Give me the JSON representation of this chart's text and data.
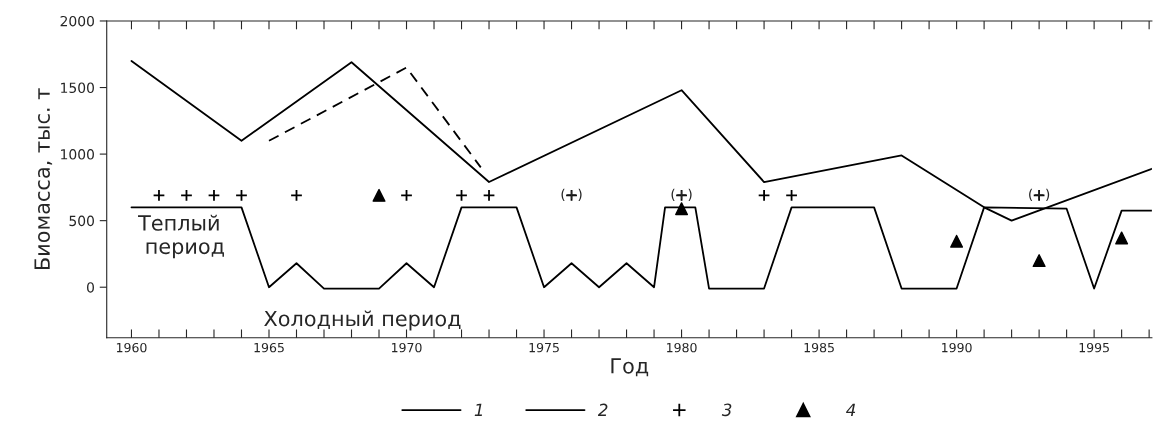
{
  "chart_data": {
    "type": "line",
    "xlabel": "Год",
    "ylabel": "Биомасса, тыс. т",
    "xlim": [
      1959.1,
      1997.1
    ],
    "ylim": [
      -380,
      2000
    ],
    "xticks": [
      {
        "value": 1960,
        "label": "1960"
      },
      {
        "value": 1961,
        "label": null
      },
      {
        "value": 1962,
        "label": null
      },
      {
        "value": 1963,
        "label": null
      },
      {
        "value": 1964,
        "label": null
      },
      {
        "value": 1965,
        "label": "1965"
      },
      {
        "value": 1966,
        "label": null
      },
      {
        "value": 1967,
        "label": null
      },
      {
        "value": 1968,
        "label": null
      },
      {
        "value": 1969,
        "label": null
      },
      {
        "value": 1970,
        "label": "1970"
      },
      {
        "value": 1971,
        "label": null
      },
      {
        "value": 1972,
        "label": null
      },
      {
        "value": 1973,
        "label": null
      },
      {
        "value": 1974,
        "label": null
      },
      {
        "value": 1975,
        "label": "1975"
      },
      {
        "value": 1976,
        "label": null
      },
      {
        "value": 1977,
        "label": null
      },
      {
        "value": 1978,
        "label": null
      },
      {
        "value": 1979,
        "label": null
      },
      {
        "value": 1980,
        "label": "1980"
      },
      {
        "value": 1981,
        "label": null
      },
      {
        "value": 1982,
        "label": null
      },
      {
        "value": 1983,
        "label": null
      },
      {
        "value": 1984,
        "label": null
      },
      {
        "value": 1985,
        "label": "1985"
      },
      {
        "value": 1986,
        "label": null
      },
      {
        "value": 1987,
        "label": null
      },
      {
        "value": 1988,
        "label": null
      },
      {
        "value": 1989,
        "label": null
      },
      {
        "value": 1990,
        "label": "1990"
      },
      {
        "value": 1991,
        "label": null
      },
      {
        "value": 1992,
        "label": null
      },
      {
        "value": 1993,
        "label": null
      },
      {
        "value": 1994,
        "label": null
      },
      {
        "value": 1995,
        "label": "1995"
      },
      {
        "value": 1996,
        "label": null
      },
      {
        "value": 1997,
        "label": null
      }
    ],
    "yticks": [
      0,
      500,
      1000,
      1500,
      2000
    ],
    "legend": "bottom",
    "grid": false,
    "series": [
      {
        "name": "1",
        "color": "#000000",
        "line_style": "solid",
        "x": [
          1960,
          1964,
          1968,
          1973,
          1980,
          1983,
          1988,
          1991,
          1992,
          1997.1
        ],
        "values": [
          1700,
          1100,
          1690,
          790,
          1480,
          790,
          990,
          600,
          500,
          890
        ]
      },
      {
        "color": "#000000",
        "line_style": "dashed",
        "x": [
          1965,
          1970,
          1972.7
        ],
        "values": [
          1100,
          1650,
          900
        ]
      },
      {
        "name": "2",
        "color": "#000000",
        "line_style": "solid",
        "x": [
          1960,
          1964,
          1965,
          1966,
          1967,
          1969,
          1970,
          1971,
          1972,
          1974,
          1975,
          1976,
          1977,
          1978,
          1979,
          1979.4,
          1980.5,
          1981,
          1983,
          1984,
          1987,
          1988,
          1990,
          1991,
          1994,
          1995,
          1996,
          1997.1
        ],
        "values": [
          600,
          600,
          0,
          180,
          -10,
          -10,
          180,
          0,
          600,
          600,
          0,
          180,
          0,
          180,
          0,
          600,
          600,
          -10,
          -10,
          600,
          600,
          -10,
          -10,
          600,
          590,
          -10,
          575,
          575
        ]
      },
      {
        "name": "3",
        "type": "scatter",
        "color": "#000000",
        "marker": "cross",
        "x": [
          1961,
          1962,
          1963,
          1964,
          1966,
          1970,
          1972,
          1973,
          1976,
          1980,
          1983,
          1984,
          1993
        ],
        "values": [
          690,
          690,
          690,
          690,
          690,
          690,
          690,
          690,
          690,
          690,
          690,
          690,
          690
        ]
      },
      {
        "name": "4",
        "type": "scatter",
        "color": "#000000",
        "marker": "triangle",
        "x": [
          1969,
          1980,
          1990,
          1993,
          1996
        ],
        "values": [
          690,
          590,
          345,
          200,
          370
        ]
      }
    ],
    "annotations": [
      "Теплый\n период",
      "Холодный период",
      {
        "text": "(+)",
        "x": 1976,
        "y": 690
      },
      {
        "text": "(+)",
        "x": 1980,
        "y": 690
      },
      {
        "text": "(+)",
        "x": 1993,
        "y": 690
      }
    ]
  }
}
